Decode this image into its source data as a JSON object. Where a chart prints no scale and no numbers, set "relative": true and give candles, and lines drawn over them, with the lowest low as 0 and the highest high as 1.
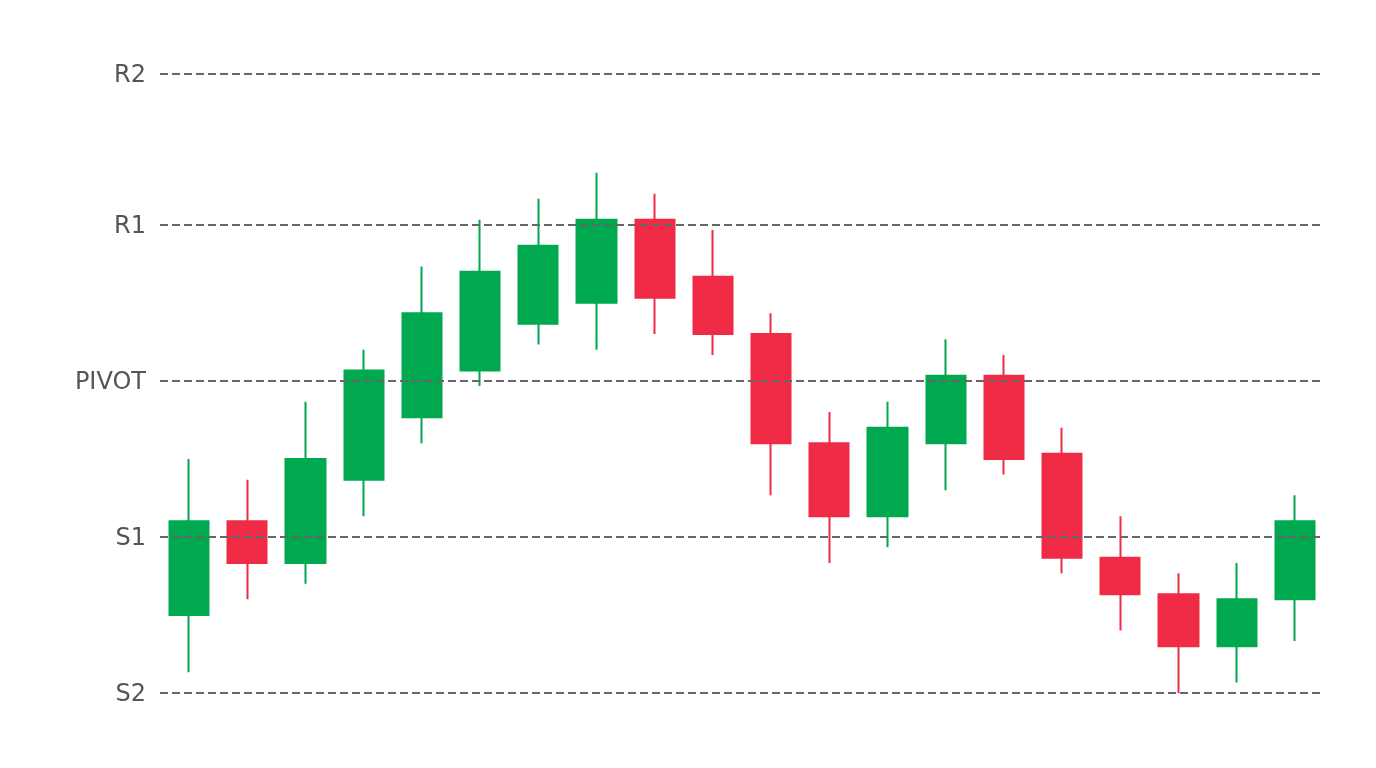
{
  "chart_data": {
    "type": "candlestick",
    "relative": true,
    "categories": [
      null,
      null,
      null,
      null,
      null,
      null,
      null,
      null,
      null,
      null,
      null,
      null,
      null,
      null,
      null,
      null,
      null,
      null,
      null,
      null
    ],
    "ohlc": [
      [
        0.15,
        0.45,
        0.04,
        0.33
      ],
      [
        0.33,
        0.41,
        0.18,
        0.25
      ],
      [
        0.25,
        0.56,
        0.21,
        0.45
      ],
      [
        0.41,
        0.66,
        0.34,
        0.62
      ],
      [
        0.53,
        0.82,
        0.48,
        0.73
      ],
      [
        0.62,
        0.91,
        0.59,
        0.81
      ],
      [
        0.71,
        0.95,
        0.67,
        0.86
      ],
      [
        0.75,
        1,
        0.66,
        0.91
      ],
      [
        0.91,
        0.96,
        0.69,
        0.76
      ],
      [
        0.8,
        0.89,
        0.65,
        0.69
      ],
      [
        0.69,
        0.73,
        0.38,
        0.48
      ],
      [
        0.48,
        0.54,
        0.25,
        0.34
      ],
      [
        0.34,
        0.56,
        0.28,
        0.51
      ],
      [
        0.48,
        0.68,
        0.39,
        0.61
      ],
      [
        0.61,
        0.65,
        0.42,
        0.45
      ],
      [
        0.46,
        0.51,
        0.23,
        0.26
      ],
      [
        0.26,
        0.34,
        0.12,
        0.19
      ],
      [
        0.19,
        0.23,
        0,
        0.09
      ],
      [
        0.09,
        0.25,
        0.02,
        0.18
      ],
      [
        0.18,
        0.38,
        0.1,
        0.33
      ]
    ],
    "colors": [
      "#00a84f",
      "#ef2b45",
      "#00a84f",
      "#00a84f",
      "#00a84f",
      "#00a84f",
      "#00a84f",
      "#00a84f",
      "#ef2b45",
      "#ef2b45",
      "#ef2b45",
      "#ef2b45",
      "#00a84f",
      "#00a84f",
      "#ef2b45",
      "#ef2b45",
      "#ef2b45",
      "#ef2b45",
      "#00a84f",
      "#00a84f"
    ],
    "ref_lines": [
      {
        "axis": "y",
        "value": 1.19,
        "label": "R2",
        "color": "#666666",
        "line_style": "dashed"
      },
      {
        "axis": "y",
        "value": 0.9,
        "label": "R1",
        "color": "#666666",
        "line_style": "dashed"
      },
      {
        "axis": "y",
        "value": 0.6,
        "label": "PIVOT",
        "color": "#666666",
        "line_style": "dashed"
      },
      {
        "axis": "y",
        "value": 0.3,
        "label": "S1",
        "color": "#666666",
        "line_style": "dashed"
      },
      {
        "axis": "y",
        "value": 0,
        "label": "S2",
        "color": "#666666",
        "line_style": "dashed"
      }
    ]
  }
}
